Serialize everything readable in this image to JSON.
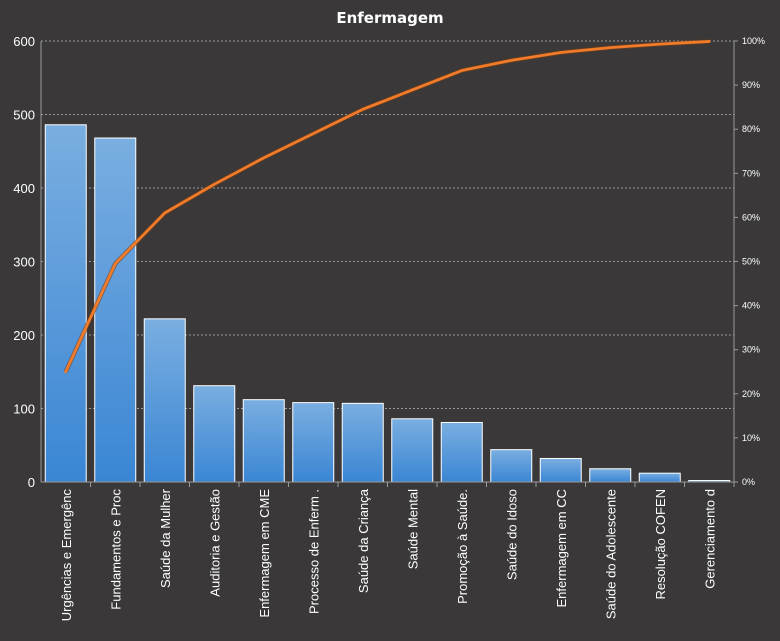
{
  "chart_data": {
    "type": "bar",
    "title": "Enfermagem",
    "categories": [
      "Urgências e Emergênc",
      "Fundamentos  e Proc",
      "Saúde da Mulher",
      "Auditoria  e Gestão",
      "Enfermagem em CME",
      "Processo de Enferm .",
      "Saúde da Criança",
      "Saúde Mental",
      "Promoção  à Saúde.",
      "Saúde do Idoso",
      "Enfermagem em CC",
      "Saúde do Adolescente",
      "Resolução COFEN",
      "Gerenciamento d"
    ],
    "series": [
      {
        "type": "bar",
        "values": [
          486,
          468,
          222,
          131,
          112,
          108,
          107,
          86,
          81,
          44,
          32,
          18,
          12,
          2
        ]
      },
      {
        "type": "line",
        "axis": "right",
        "values": [
          25,
          49.5,
          61,
          67.5,
          73.5,
          79,
          84.5,
          88.9,
          93.3,
          95.6,
          97.4,
          98.5,
          99.3,
          99.9
        ]
      }
    ],
    "ylim": [
      0,
      600
    ],
    "y_ticks": [
      "0",
      "100",
      "200",
      "300",
      "400",
      "500",
      "600"
    ],
    "y2lim": [
      0,
      100
    ],
    "y2_ticks": [
      "0%",
      "10%",
      "20%",
      "30%",
      "40%",
      "50%",
      "60%",
      "70%",
      "80%",
      "90%",
      "100%"
    ],
    "grid": true,
    "colors": {
      "background": "#3a3838",
      "bar_top": "#7aaee0",
      "bar_bottom": "#3a86d4",
      "bar_edge": "#ffffff",
      "line": "#f07b2a",
      "grid": "#9a9a9a",
      "text": "#ffffff"
    }
  }
}
